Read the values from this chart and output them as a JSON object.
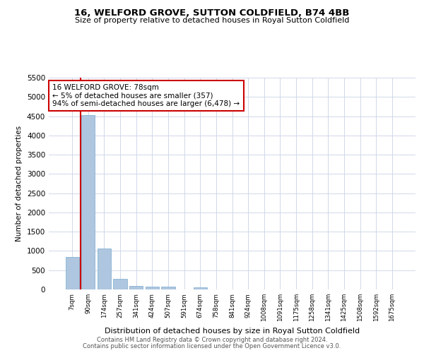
{
  "title": "16, WELFORD GROVE, SUTTON COLDFIELD, B74 4BB",
  "subtitle": "Size of property relative to detached houses in Royal Sutton Coldfield",
  "xlabel": "Distribution of detached houses by size in Royal Sutton Coldfield",
  "ylabel": "Number of detached properties",
  "footer1": "Contains HM Land Registry data © Crown copyright and database right 2024.",
  "footer2": "Contains public sector information licensed under the Open Government Licence v3.0.",
  "annotation_line1": "16 WELFORD GROVE: 78sqm",
  "annotation_line2": "← 5% of detached houses are smaller (357)",
  "annotation_line3": "94% of semi-detached houses are larger (6,478) →",
  "bar_color": "#aec6df",
  "bar_edge_color": "#7aaacf",
  "red_line_color": "#cc0000",
  "annotation_box_color": "#cc0000",
  "categories": [
    "7sqm",
    "90sqm",
    "174sqm",
    "257sqm",
    "341sqm",
    "424sqm",
    "507sqm",
    "591sqm",
    "674sqm",
    "758sqm",
    "841sqm",
    "924sqm",
    "1008sqm",
    "1091sqm",
    "1175sqm",
    "1258sqm",
    "1341sqm",
    "1425sqm",
    "1508sqm",
    "1592sqm",
    "1675sqm"
  ],
  "values": [
    850,
    4520,
    1060,
    280,
    90,
    82,
    80,
    0,
    62,
    0,
    0,
    0,
    0,
    0,
    0,
    0,
    0,
    0,
    0,
    0,
    0
  ],
  "ylim": [
    0,
    5500
  ],
  "yticks": [
    0,
    500,
    1000,
    1500,
    2000,
    2500,
    3000,
    3500,
    4000,
    4500,
    5000,
    5500
  ],
  "bg_color": "#ffffff",
  "grid_color": "#d0d8e8",
  "red_line_x": 0.5
}
